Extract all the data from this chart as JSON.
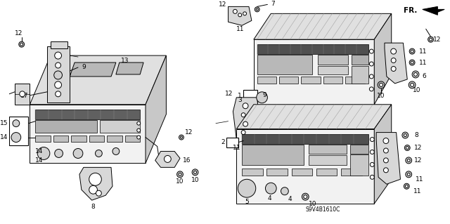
{
  "bg_color": "#ffffff",
  "fig_width": 6.4,
  "fig_height": 3.19,
  "dpi": 100,
  "fr_label": "FR.",
  "diagram_code": "S9V4B1610C",
  "line_color": "#000000",
  "lw": 0.7,
  "fs": 6.5,
  "gray_light": "#c8c8c8",
  "gray_med": "#a0a0a0",
  "gray_dark": "#707070",
  "fill_box": "#e8e8e8",
  "fill_bracket": "#d8d8d8",
  "fill_front": "#f2f2f2",
  "fill_top": "#e0e0e0",
  "fill_side": "#c8c8c8"
}
